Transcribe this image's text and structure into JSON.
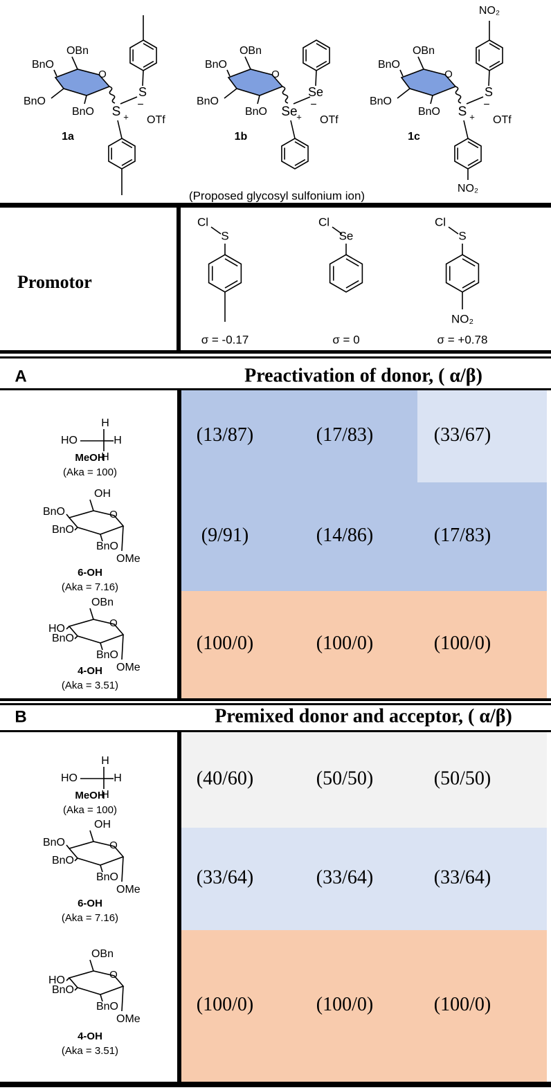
{
  "sulfonium_ions": {
    "items": [
      {
        "id": "1a",
        "sugar": [
          "BnO",
          "OBn",
          "O",
          "BnO",
          "BnO"
        ],
        "center": "S",
        "charge": "+",
        "bridge": "S",
        "anion_charge": "−",
        "anion": "OTf",
        "para_methyl": true
      },
      {
        "id": "1b",
        "sugar": [
          "BnO",
          "OBn",
          "O",
          "BnO",
          "BnO"
        ],
        "center": "Se",
        "charge": "+",
        "bridge": "Se",
        "anion_charge": "−",
        "anion": "OTf",
        "para_methyl": false
      },
      {
        "id": "1c",
        "sugar": [
          "BnO",
          "OBn",
          "O",
          "BnO",
          "BnO"
        ],
        "center": "S",
        "charge": "+",
        "bridge": "S",
        "anion_charge": "−",
        "anion": "OTf",
        "para_methyl": false,
        "para_labels": [
          "NO₂",
          "NO₂"
        ]
      }
    ],
    "caption": "(Proposed glycosyl sulfonium ion)"
  },
  "promotor": {
    "header": "Promotor",
    "reagents": [
      {
        "halogen": "Cl",
        "atom": "S",
        "para_methyl": true,
        "sigma": "σ = -0.17"
      },
      {
        "halogen": "Cl",
        "atom": "Se",
        "para_methyl": false,
        "sigma": "σ = 0"
      },
      {
        "halogen": "Cl",
        "atom": "S",
        "para_methyl": false,
        "para_label": "NO₂",
        "sigma": "σ = +0.78"
      }
    ]
  },
  "sections": [
    {
      "label": "A",
      "title": "Preactivation of donor, ( α/β)",
      "rows": [
        {
          "acceptor": {
            "kind": "methanol",
            "structure": [
              "HO",
              "H",
              "H",
              "H"
            ],
            "name": "MeOH",
            "aka": "(Aka = 100)"
          },
          "values": [
            "(13/87)",
            "(17/83)",
            "(33/67)"
          ],
          "cell_colors": [
            "#b4c6e7",
            "#b4c6e7",
            "#dae3f3"
          ]
        },
        {
          "acceptor": {
            "kind": "6-OH",
            "structure": [
              "OH",
              "BnO",
              "BnO",
              "O",
              "BnO",
              "OMe"
            ],
            "name": "6-OH",
            "aka": "(Aka = 7.16)"
          },
          "values": [
            "(9/91)",
            "(14/86)",
            "(17/83)"
          ],
          "cell_colors": [
            "#b4c6e7",
            "#b4c6e7",
            "#b4c6e7"
          ]
        },
        {
          "acceptor": {
            "kind": "4-OH",
            "structure": [
              "OBn",
              "HO",
              "BnO",
              "O",
              "BnO",
              "OMe"
            ],
            "name": "4-OH",
            "aka": "(Aka = 3.51)"
          },
          "values": [
            "(100/0)",
            "(100/0)",
            "(100/0)"
          ],
          "cell_colors": [
            "#f8cbad",
            "#f8cbad",
            "#f8cbad"
          ]
        }
      ]
    },
    {
      "label": "B",
      "title": "Premixed donor and acceptor, ( α/β)",
      "rows": [
        {
          "acceptor": {
            "kind": "methanol",
            "structure": [
              "HO",
              "H",
              "H",
              "H"
            ],
            "name": "MeOH",
            "aka": "(Aka = 100)"
          },
          "values": [
            "(40/60)",
            "(50/50)",
            "(50/50)"
          ],
          "cell_colors": [
            "#f2f2f2",
            "#f2f2f2",
            "#f2f2f2"
          ]
        },
        {
          "acceptor": {
            "kind": "6-OH",
            "structure": [
              "OH",
              "BnO",
              "BnO",
              "O",
              "BnO",
              "OMe"
            ],
            "name": "6-OH",
            "aka": "(Aka = 7.16)"
          },
          "values": [
            "(33/64)",
            "(33/64)",
            "(33/64)"
          ],
          "cell_colors": [
            "#dae3f3",
            "#dae3f3",
            "#dae3f3"
          ]
        },
        {
          "acceptor": {
            "kind": "4-OH",
            "structure": [
              "OBn",
              "HO",
              "BnO",
              "O",
              "BnO",
              "OMe"
            ],
            "name": "4-OH",
            "aka": "(Aka = 3.51)"
          },
          "values": [
            "(100/0)",
            "(100/0)",
            "(100/0)"
          ],
          "cell_colors": [
            "#f8cbad",
            "#f8cbad",
            "#f8cbad"
          ]
        }
      ]
    }
  ]
}
